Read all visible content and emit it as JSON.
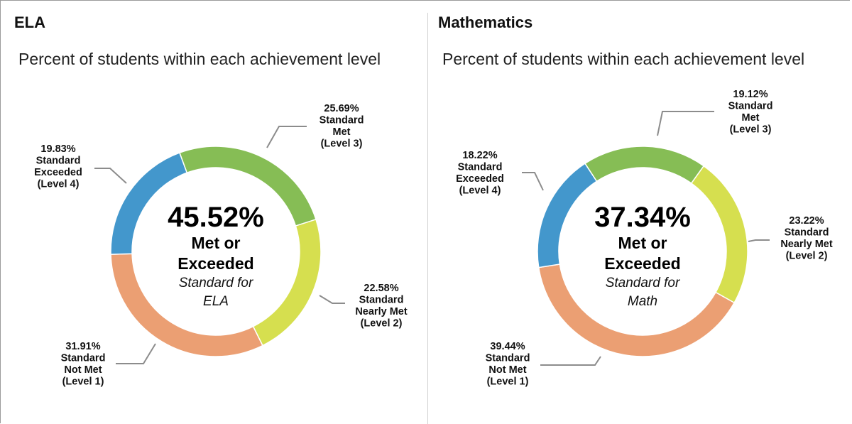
{
  "chart_data": [
    {
      "type": "pie",
      "title": "ELA",
      "subtitle": "Percent of students within each achievement level",
      "center": {
        "value": "45.52%",
        "line1": "Met or",
        "line2": "Exceeded",
        "line3": "Standard for",
        "line4": "ELA"
      },
      "slices": [
        {
          "pct": "25.69%",
          "label": [
            "Standard",
            "Met",
            "(Level 3)"
          ],
          "value": 25.69,
          "color": "#86bd55"
        },
        {
          "pct": "22.58%",
          "label": [
            "Standard",
            "Nearly Met",
            "(Level 2)"
          ],
          "value": 22.58,
          "color": "#d6df4f"
        },
        {
          "pct": "31.91%",
          "label": [
            "Standard",
            "Not Met",
            "(Level 1)"
          ],
          "value": 31.91,
          "color": "#eb9f73"
        },
        {
          "pct": "19.83%",
          "label": [
            "Standard",
            "Exceeded",
            "(Level 4)"
          ],
          "value": 19.83,
          "color": "#4397cc"
        }
      ]
    },
    {
      "type": "pie",
      "title": "Mathematics",
      "subtitle": "Percent of students within each achievement level",
      "center": {
        "value": "37.34%",
        "line1": "Met or",
        "line2": "Exceeded",
        "line3": "Standard for",
        "line4": "Math"
      },
      "slices": [
        {
          "pct": "19.12%",
          "label": [
            "Standard",
            "Met",
            "(Level 3)"
          ],
          "value": 19.12,
          "color": "#86bd55"
        },
        {
          "pct": "23.22%",
          "label": [
            "Standard",
            "Nearly Met",
            "(Level 2)"
          ],
          "value": 23.22,
          "color": "#d6df4f"
        },
        {
          "pct": "39.44%",
          "label": [
            "Standard",
            "Not Met",
            "(Level 1)"
          ],
          "value": 39.44,
          "color": "#eb9f73"
        },
        {
          "pct": "18.22%",
          "label": [
            "Standard",
            "Exceeded",
            "(Level 4)"
          ],
          "value": 18.22,
          "color": "#4397cc"
        }
      ]
    }
  ]
}
